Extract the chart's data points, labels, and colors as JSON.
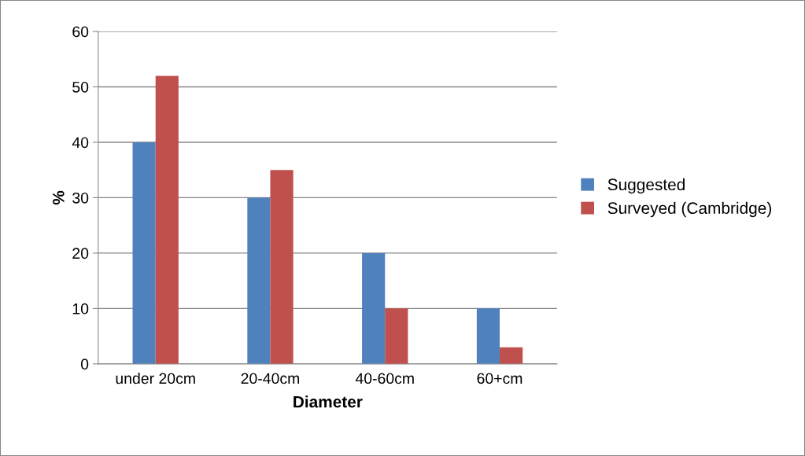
{
  "chart_data": {
    "type": "bar",
    "xlabel": "Diameter",
    "ylabel": "%",
    "categories": [
      "under 20cm",
      "20-40cm",
      "40-60cm",
      "60+cm"
    ],
    "series": [
      {
        "name": "Suggested",
        "color": "#4f81bd",
        "values": [
          40,
          30,
          20,
          10
        ]
      },
      {
        "name": "Surveyed (Cambridge)",
        "color": "#c0504d",
        "values": [
          52,
          35,
          10,
          3
        ]
      }
    ],
    "ylim": [
      0,
      60
    ],
    "yticks": [
      0,
      10,
      20,
      30,
      40,
      50,
      60
    ],
    "grid": "y",
    "legend": "right"
  }
}
